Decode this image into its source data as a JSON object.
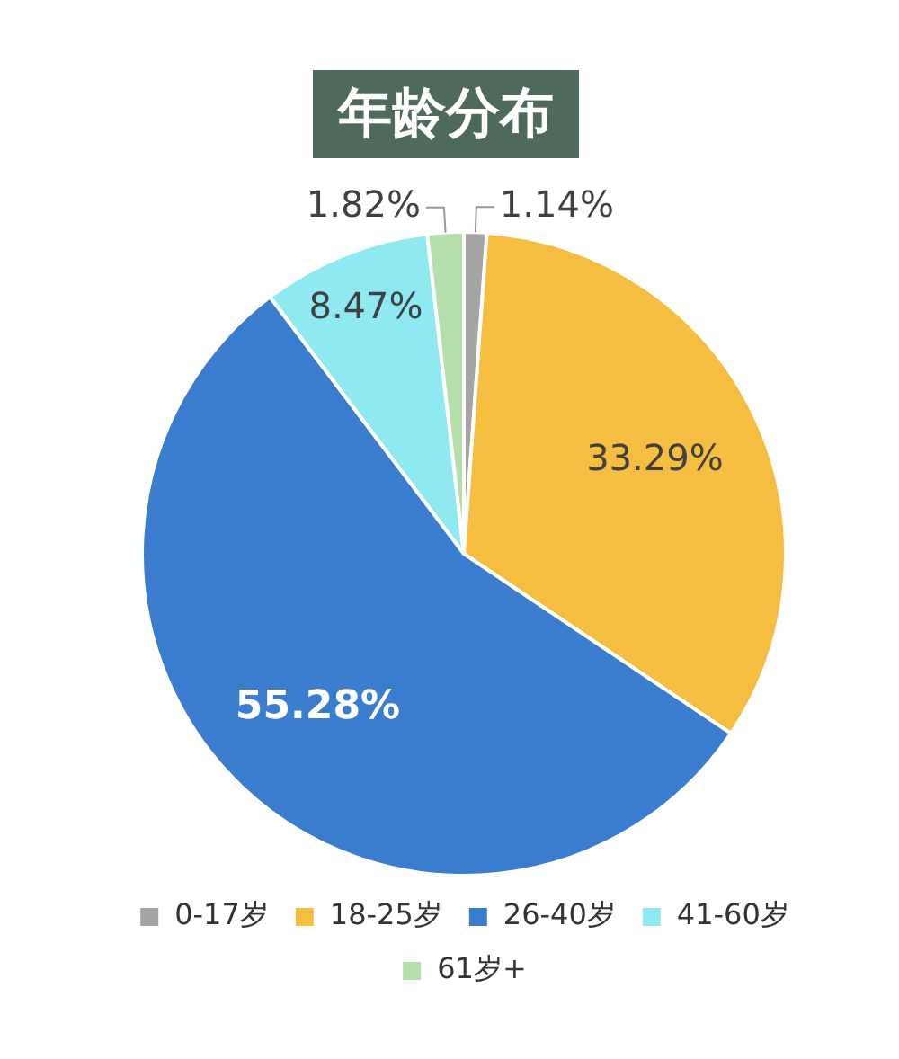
{
  "chart_data": {
    "type": "pie",
    "title": "年龄分布",
    "categories": [
      "0-17岁",
      "18-25岁",
      "26-40岁",
      "41-60岁",
      "61岁+"
    ],
    "values": [
      1.14,
      33.29,
      55.28,
      8.47,
      1.82
    ],
    "colors": [
      "#a5a5a5",
      "#f5be41",
      "#3a7dcf",
      "#8ee9f1",
      "#b4deaa"
    ],
    "value_labels": [
      "1.14%",
      "33.29%",
      "55.28%",
      "8.47%",
      "1.82%"
    ],
    "legend": "bottom"
  }
}
